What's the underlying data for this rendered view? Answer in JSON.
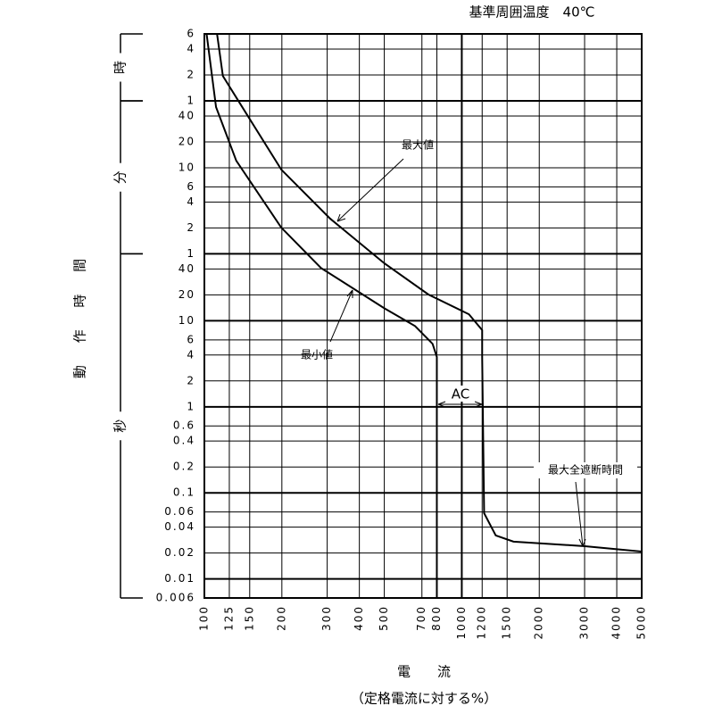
{
  "chart_data": {
    "type": "line",
    "title": "基準周囲温度　40℃",
    "xlabel": "電　　流",
    "xlabel_sub": "（定格電流に対する%）",
    "ylabel": "動 作 時 間",
    "log_x": true,
    "log_y": true,
    "grid": true,
    "xlim": [
      100,
      5000
    ],
    "ylim": [
      0.006,
      21600
    ],
    "xticks": [
      100,
      125,
      150,
      200,
      300,
      400,
      500,
      700,
      800,
      1000,
      1200,
      1500,
      2000,
      3000,
      4000,
      5000
    ],
    "yticks": [
      {
        "value": 21600,
        "label": "6"
      },
      {
        "value": 14400,
        "label": "4"
      },
      {
        "value": 7200,
        "label": "2"
      },
      {
        "value": 3600,
        "label": "1"
      },
      {
        "value": 2400,
        "label": "40"
      },
      {
        "value": 1200,
        "label": "20"
      },
      {
        "value": 600,
        "label": "10"
      },
      {
        "value": 360,
        "label": "6"
      },
      {
        "value": 240,
        "label": "4"
      },
      {
        "value": 120,
        "label": "2"
      },
      {
        "value": 60,
        "label": "1"
      },
      40,
      20,
      10,
      6,
      4,
      2,
      1,
      0.6,
      0.4,
      0.2,
      0.1,
      0.06,
      0.04,
      0.02,
      0.01,
      0.006
    ],
    "unit_groups": [
      {
        "label": "時",
        "from": 3600,
        "to": 21600
      },
      {
        "label": "分",
        "from": 60,
        "to": 3600
      },
      {
        "label": "秒",
        "from": 0.006,
        "to": 60
      }
    ],
    "series": [
      {
        "name": "最大値",
        "color": "#000000",
        "x": [
          112,
          118,
          139,
          199,
          308,
          500,
          742,
          1066,
          1200,
          1200,
          1221,
          1355,
          1588,
          3010,
          5000
        ],
        "values": [
          21600,
          7000,
          3190,
          572,
          154,
          46.6,
          20.2,
          11.9,
          7.8,
          3.8,
          0.058,
          0.032,
          0.0271,
          0.024,
          0.0208
        ]
      },
      {
        "name": "最小値",
        "color": "#000000",
        "x": [
          102,
          111,
          133,
          199,
          284,
          500,
          658,
          770,
          800,
          800
        ],
        "values": [
          21600,
          3050,
          726,
          121,
          41,
          14,
          8.7,
          5.4,
          3.8,
          0.006
        ]
      }
    ],
    "annotations": [
      "AC",
      "最大全遮断時間"
    ]
  }
}
